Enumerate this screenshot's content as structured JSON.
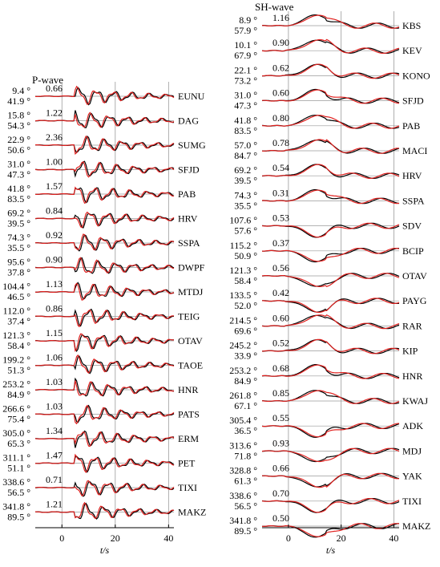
{
  "chart_data": [
    {
      "type": "line",
      "title": "P-wave",
      "xlabel": "t/s",
      "xlim": [
        -10,
        42
      ],
      "xticks": [
        0,
        20,
        40
      ],
      "grid": true,
      "legend": "none",
      "colors": {
        "observed": "#000000",
        "synthetic": "#e0201e",
        "grid": "#9a9a9a"
      },
      "stations": [
        {
          "station": "EUNU",
          "azimuth": "9.4 °",
          "distance": "41.9 °",
          "amplitude_ratio": "0.66",
          "onset": 6,
          "peak": 1.0
        },
        {
          "station": "DAG",
          "azimuth": "15.8 °",
          "distance": "54.3 °",
          "amplitude_ratio": "1.22",
          "onset": 6,
          "peak": 1.0
        },
        {
          "station": "SUMG",
          "azimuth": "22.9 °",
          "distance": "50.6 °",
          "amplitude_ratio": "2.36",
          "onset": 6,
          "peak": 1.0
        },
        {
          "station": "SFJD",
          "azimuth": "31.0 °",
          "distance": "47.3 °",
          "amplitude_ratio": "1.00",
          "onset": 6,
          "peak": 1.0
        },
        {
          "station": "PAB",
          "azimuth": "41.8 °",
          "distance": "83.5 °",
          "amplitude_ratio": "1.57",
          "onset": 6,
          "peak": 1.0
        },
        {
          "station": "HRV",
          "azimuth": "69.2 °",
          "distance": "39.5 °",
          "amplitude_ratio": "0.84",
          "onset": 6,
          "peak": 1.0
        },
        {
          "station": "SSPA",
          "azimuth": "74.3 °",
          "distance": "35.5 °",
          "amplitude_ratio": "0.92",
          "onset": 6,
          "peak": 1.0
        },
        {
          "station": "DWPF",
          "azimuth": "95.6 °",
          "distance": "37.8 °",
          "amplitude_ratio": "0.90",
          "onset": 6,
          "peak": 1.0
        },
        {
          "station": "MTDJ",
          "azimuth": "104.4 °",
          "distance": "46.5 °",
          "amplitude_ratio": "1.13",
          "onset": 6,
          "peak": 1.0
        },
        {
          "station": "TEIG",
          "azimuth": "112.0 °",
          "distance": "37.4 °",
          "amplitude_ratio": "0.86",
          "onset": 6,
          "peak": 1.0
        },
        {
          "station": "OTAV",
          "azimuth": "121.3 °",
          "distance": "58.4 °",
          "amplitude_ratio": "1.15",
          "onset": 6,
          "peak": 1.0
        },
        {
          "station": "TAOE",
          "azimuth": "199.2 °",
          "distance": "51.3 °",
          "amplitude_ratio": "1.06",
          "onset": 6,
          "peak": 1.0
        },
        {
          "station": "HNR",
          "azimuth": "253.2 °",
          "distance": "84.9 °",
          "amplitude_ratio": "1.03",
          "onset": 6,
          "peak": 1.0
        },
        {
          "station": "PATS",
          "azimuth": "266.6 °",
          "distance": "75.4 °",
          "amplitude_ratio": "1.03",
          "onset": 6,
          "peak": 1.0
        },
        {
          "station": "ERM",
          "azimuth": "305.0 °",
          "distance": "65.3 °",
          "amplitude_ratio": "1.34",
          "onset": 6,
          "peak": 1.0
        },
        {
          "station": "PET",
          "azimuth": "311.1 °",
          "distance": "51.1 °",
          "amplitude_ratio": "1.47",
          "onset": 6,
          "peak": 1.0
        },
        {
          "station": "TIXI",
          "azimuth": "338.6 °",
          "distance": "56.5 °",
          "amplitude_ratio": "0.71",
          "onset": 6,
          "peak": 1.0
        },
        {
          "station": "MAKZ",
          "azimuth": "341.8 °",
          "distance": "89.5 °",
          "amplitude_ratio": "1.21",
          "onset": 6,
          "peak": 1.0
        }
      ]
    },
    {
      "type": "line",
      "title": "SH-wave",
      "xlabel": "t/s",
      "xlim": [
        -10,
        42
      ],
      "xticks": [
        0,
        20,
        40
      ],
      "grid": true,
      "legend": "none",
      "colors": {
        "observed": "#000000",
        "synthetic": "#e0201e",
        "grid": "#9a9a9a"
      },
      "stations": [
        {
          "station": "KBS",
          "azimuth": "8.9 °",
          "distance": "57.9 °",
          "amplitude_ratio": "1.16",
          "onset": 0,
          "peak": 1.0
        },
        {
          "station": "KEV",
          "azimuth": "10.1 °",
          "distance": "67.9 °",
          "amplitude_ratio": "0.90",
          "onset": 0,
          "peak": 1.0
        },
        {
          "station": "KONO",
          "azimuth": "22.1 °",
          "distance": "73.2 °",
          "amplitude_ratio": "0.62",
          "onset": 0,
          "peak": 1.0
        },
        {
          "station": "SFJD",
          "azimuth": "31.0 °",
          "distance": "47.3 °",
          "amplitude_ratio": "0.60",
          "onset": 0,
          "peak": 1.0
        },
        {
          "station": "PAB",
          "azimuth": "41.8 °",
          "distance": "83.5 °",
          "amplitude_ratio": "0.80",
          "onset": 0,
          "peak": 1.0
        },
        {
          "station": "MACI",
          "azimuth": "57.0 °",
          "distance": "84.7 °",
          "amplitude_ratio": "0.78",
          "onset": 0,
          "peak": 1.0
        },
        {
          "station": "HRV",
          "azimuth": "69.2 °",
          "distance": "39.5 °",
          "amplitude_ratio": "0.54",
          "onset": 0,
          "peak": 1.0
        },
        {
          "station": "SSPA",
          "azimuth": "74.3 °",
          "distance": "35.5 °",
          "amplitude_ratio": "0.31",
          "onset": 0,
          "peak": 1.0
        },
        {
          "station": "SDV",
          "azimuth": "107.6 °",
          "distance": "57.6 °",
          "amplitude_ratio": "0.53",
          "onset": 0,
          "peak": -1.0
        },
        {
          "station": "BCIP",
          "azimuth": "115.2 °",
          "distance": "50.9 °",
          "amplitude_ratio": "0.37",
          "onset": 0,
          "peak": -1.0
        },
        {
          "station": "OTAV",
          "azimuth": "121.3 °",
          "distance": "58.4 °",
          "amplitude_ratio": "0.56",
          "onset": 0,
          "peak": -1.0
        },
        {
          "station": "PAYG",
          "azimuth": "133.5 °",
          "distance": "52.0 °",
          "amplitude_ratio": "0.42",
          "onset": 0,
          "peak": -1.0
        },
        {
          "station": "RAR",
          "azimuth": "214.5 °",
          "distance": "69.6 °",
          "amplitude_ratio": "0.60",
          "onset": 0,
          "peak": 1.0
        },
        {
          "station": "KIP",
          "azimuth": "245.2 °",
          "distance": "33.9 °",
          "amplitude_ratio": "0.52",
          "onset": 0,
          "peak": 1.0
        },
        {
          "station": "HNR",
          "azimuth": "253.2 °",
          "distance": "84.9 °",
          "amplitude_ratio": "0.68",
          "onset": 0,
          "peak": 1.0
        },
        {
          "station": "KWAJ",
          "azimuth": "261.8 °",
          "distance": "67.1 °",
          "amplitude_ratio": "0.85",
          "onset": 0,
          "peak": 1.0
        },
        {
          "station": "ADK",
          "azimuth": "305.4 °",
          "distance": "36.5 °",
          "amplitude_ratio": "0.55",
          "onset": 0,
          "peak": -1.0
        },
        {
          "station": "MDJ",
          "azimuth": "313.6 °",
          "distance": "71.8 °",
          "amplitude_ratio": "0.93",
          "onset": 0,
          "peak": -1.0
        },
        {
          "station": "YAK",
          "azimuth": "328.8 °",
          "distance": "61.3 °",
          "amplitude_ratio": "0.66",
          "onset": 0,
          "peak": -1.0
        },
        {
          "station": "TIXI",
          "azimuth": "338.6 °",
          "distance": "56.5 °",
          "amplitude_ratio": "0.70",
          "onset": 0,
          "peak": -1.0
        },
        {
          "station": "MAKZ",
          "azimuth": "341.8 °",
          "distance": "89.5 °",
          "amplitude_ratio": "0.50",
          "onset": 0,
          "peak": -1.0
        }
      ]
    }
  ]
}
